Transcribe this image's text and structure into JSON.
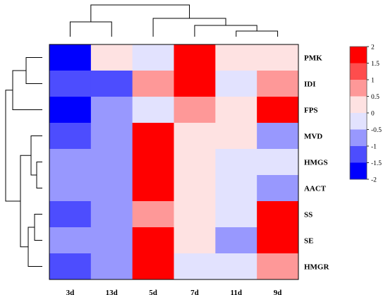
{
  "chart_data": {
    "type": "heatmap",
    "columns": [
      "3d",
      "13d",
      "5d",
      "7d",
      "11d",
      "9d"
    ],
    "rows": [
      "PMK",
      "IDI",
      "FPS",
      "MVD",
      "HMGS",
      "AACT",
      "SS",
      "SE",
      "HMGR"
    ],
    "values": [
      [
        -2,
        0.25,
        -0.25,
        1.75,
        0.25,
        0.25
      ],
      [
        -1.25,
        -1.25,
        0.75,
        1.75,
        -0.25,
        0.75
      ],
      [
        -2,
        -0.75,
        -0.25,
        0.75,
        0.25,
        1.75
      ],
      [
        -1.25,
        -0.75,
        2,
        0.25,
        0.25,
        -0.75
      ],
      [
        -0.75,
        -0.75,
        2,
        0.25,
        -0.25,
        -0.25
      ],
      [
        -0.75,
        -0.75,
        2,
        0.25,
        -0.25,
        -0.75
      ],
      [
        -1.25,
        -0.75,
        0.75,
        0.25,
        -0.25,
        1.75
      ],
      [
        -0.75,
        -0.75,
        1.75,
        0.25,
        -0.75,
        1.75
      ],
      [
        -1.25,
        -0.75,
        2.0,
        -0.25,
        -0.25,
        0.75
      ]
    ],
    "colorbar": {
      "ticks": [
        "2",
        "1.5",
        "1",
        "0.5",
        "0",
        "-0.5",
        "-1",
        "-1.5",
        "-2"
      ],
      "colors": [
        "#ff0000",
        "#fe4d4d",
        "#fe9898",
        "#fee2e2",
        "#e2e2fe",
        "#9898fe",
        "#4d4dfe",
        "#0000fe"
      ],
      "range": [
        -2,
        2
      ]
    },
    "legend_placement": "right"
  }
}
